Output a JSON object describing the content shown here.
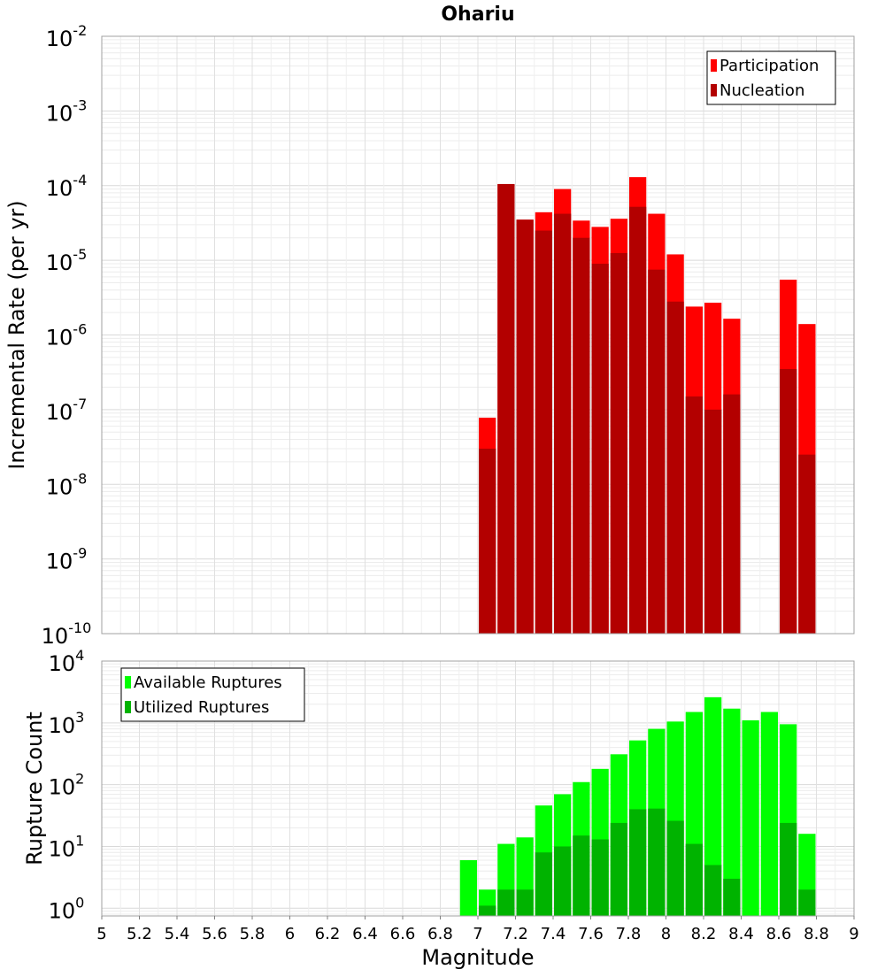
{
  "chart_data": [
    {
      "type": "bar",
      "title": "Ohariu",
      "ylabel": "Incremental Rate (per yr)",
      "xlabel": "",
      "yscale": "log",
      "ylim": [
        1e-10,
        0.01
      ],
      "xlim": [
        5,
        9
      ],
      "bar_width": 0.1,
      "grid": true,
      "legend_position": "top-right",
      "y_ticks": [
        {
          "base": "10",
          "exp": "-10"
        },
        {
          "base": "10",
          "exp": "-9"
        },
        {
          "base": "10",
          "exp": "-8"
        },
        {
          "base": "10",
          "exp": "-7"
        },
        {
          "base": "10",
          "exp": "-6"
        },
        {
          "base": "10",
          "exp": "-5"
        },
        {
          "base": "10",
          "exp": "-4"
        },
        {
          "base": "10",
          "exp": "-3"
        },
        {
          "base": "10",
          "exp": "-2"
        }
      ],
      "x": [
        7.05,
        7.15,
        7.25,
        7.35,
        7.45,
        7.55,
        7.65,
        7.75,
        7.85,
        7.95,
        8.05,
        8.15,
        8.25,
        8.35,
        8.45,
        8.55,
        8.65,
        8.75
      ],
      "series": [
        {
          "name": "Participation",
          "color": "#ff0000",
          "values": [
            7.8e-08,
            0.000105,
            3.5e-05,
            4.4e-05,
            9e-05,
            3.4e-05,
            2.8e-05,
            3.6e-05,
            0.00013,
            4.2e-05,
            1.2e-05,
            2.4e-06,
            2.7e-06,
            1.65e-06,
            null,
            null,
            5.5e-06,
            1.4e-06
          ]
        },
        {
          "name": "Nucleation",
          "color": "#b30000",
          "values": [
            3e-08,
            0.000105,
            3.5e-05,
            2.5e-05,
            4.2e-05,
            2e-05,
            9e-06,
            1.25e-05,
            5.2e-05,
            7.5e-06,
            2.8e-06,
            1.5e-07,
            1e-07,
            1.6e-07,
            null,
            null,
            3.5e-07,
            2.5e-08
          ]
        }
      ]
    },
    {
      "type": "bar",
      "title": "",
      "ylabel": "Rupture Count",
      "xlabel": "Magnitude",
      "yscale": "log",
      "ylim": [
        0.75,
        10000
      ],
      "xlim": [
        5,
        9
      ],
      "bar_width": 0.1,
      "grid": true,
      "legend_position": "top-left",
      "y_ticks": [
        {
          "base": "10",
          "exp": "0"
        },
        {
          "base": "10",
          "exp": "1"
        },
        {
          "base": "10",
          "exp": "2"
        },
        {
          "base": "10",
          "exp": "3"
        },
        {
          "base": "10",
          "exp": "4"
        }
      ],
      "x_tick_labels": [
        "5",
        "5.2",
        "5.4",
        "5.6",
        "5.8",
        "6",
        "6.2",
        "6.4",
        "6.6",
        "6.8",
        "7",
        "7.2",
        "7.4",
        "7.6",
        "7.8",
        "8",
        "8.2",
        "8.4",
        "8.6",
        "8.8",
        "9"
      ],
      "x": [
        6.95,
        7.05,
        7.15,
        7.25,
        7.35,
        7.45,
        7.55,
        7.65,
        7.75,
        7.85,
        7.95,
        8.05,
        8.15,
        8.25,
        8.35,
        8.45,
        8.55,
        8.65,
        8.75
      ],
      "series": [
        {
          "name": "Available Ruptures",
          "color": "#00ff00",
          "values": [
            6,
            2,
            11,
            14,
            46,
            70,
            110,
            180,
            310,
            520,
            800,
            1050,
            1500,
            2600,
            1700,
            1100,
            1500,
            950,
            16
          ]
        },
        {
          "name": "Utilized Ruptures",
          "color": "#00b300",
          "values": [
            null,
            1.1,
            2,
            2,
            8,
            10,
            15,
            13,
            24,
            40,
            41,
            26,
            11,
            5,
            3,
            null,
            null,
            24,
            2
          ]
        }
      ]
    }
  ]
}
